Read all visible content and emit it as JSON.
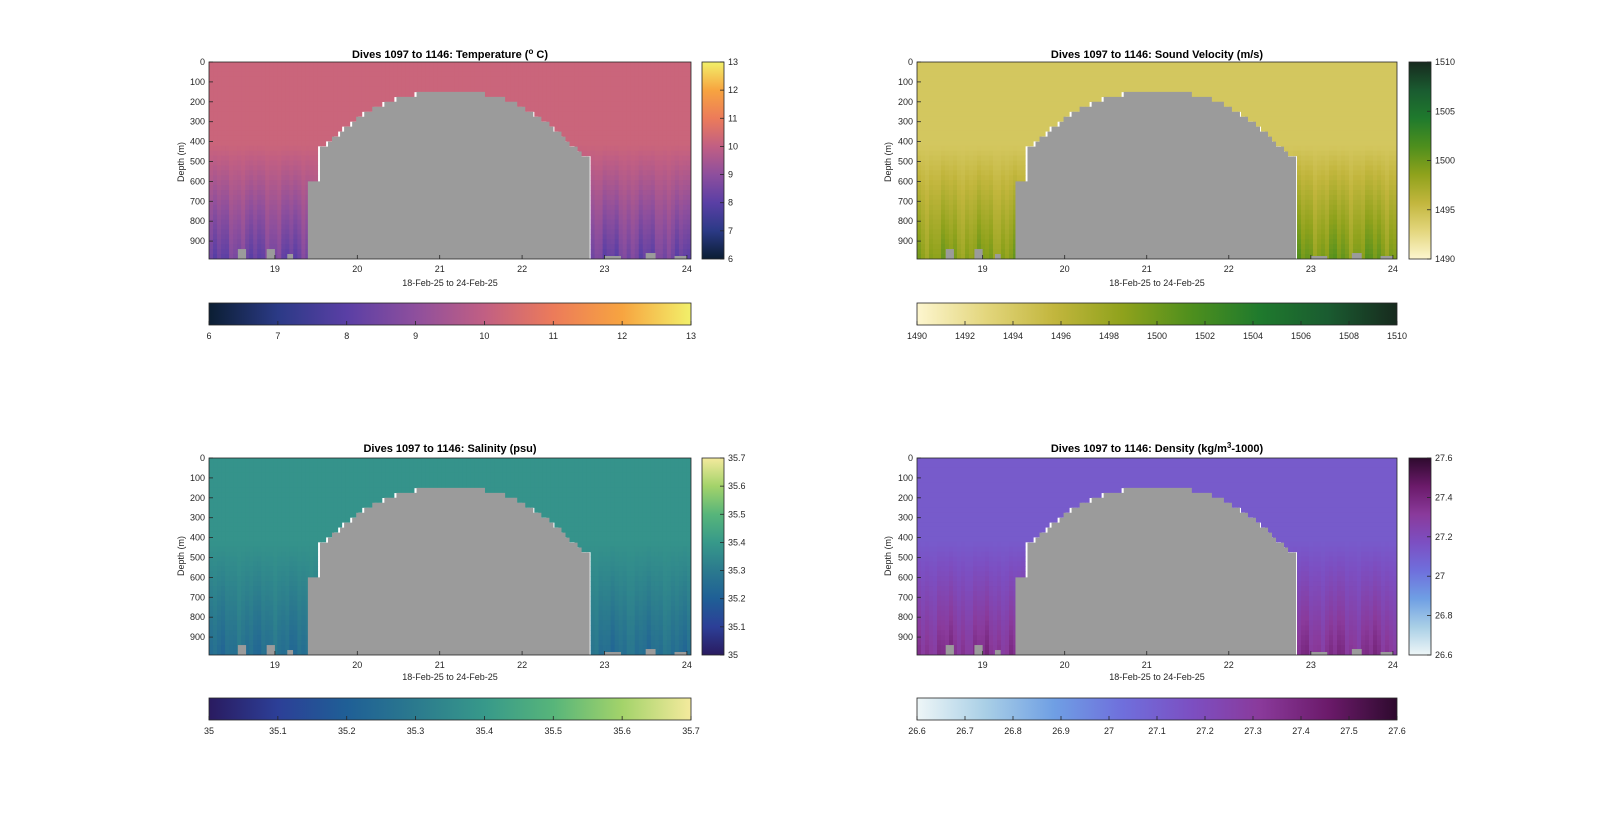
{
  "chart_data": [
    {
      "type": "heatmap",
      "title": "Dives 1097 to 1146: Temperature (",
      "title_sup": "o",
      "title_end": " C)",
      "xlabel": "18-Feb-25 to 24-Feb-25",
      "ylabel": "Depth (m)",
      "x_ticks": [
        "19",
        "20",
        "21",
        "22",
        "23",
        "24"
      ],
      "x_tick_values": [
        19,
        20,
        21,
        22,
        23,
        24
      ],
      "xlim": [
        18.2,
        24.05
      ],
      "y_ticks": [
        "0",
        "100",
        "200",
        "300",
        "400",
        "500",
        "600",
        "700",
        "800",
        "900"
      ],
      "y_tick_values": [
        0,
        100,
        200,
        300,
        400,
        500,
        600,
        700,
        800,
        900
      ],
      "ylim": [
        0,
        990
      ],
      "y_reversed": true,
      "colorbar_ticks": [
        "6",
        "7",
        "8",
        "9",
        "10",
        "11",
        "12",
        "13"
      ],
      "hcolorbar_ticks": [
        "6",
        "7",
        "8",
        "9",
        "10",
        "11",
        "12",
        "13"
      ],
      "crange": [
        6,
        13
      ],
      "colormap": [
        "#0b1e33",
        "#2b3a86",
        "#5a3fa5",
        "#8e4f9d",
        "#c15f83",
        "#ec7b5a",
        "#f7a440",
        "#f2f06a"
      ],
      "near_surface_value": 10.2,
      "deep_value_left": 7.8,
      "deep_value_right": 7.8,
      "no_data_color": "#9b9b9b",
      "grid": false
    },
    {
      "type": "heatmap",
      "title": "Dives 1097 to 1146: Sound Velocity (m/s)",
      "xlabel": "18-Feb-25 to 24-Feb-25",
      "ylabel": "Depth (m)",
      "x_ticks": [
        "19",
        "20",
        "21",
        "22",
        "23",
        "24"
      ],
      "x_tick_values": [
        19,
        20,
        21,
        22,
        23,
        24
      ],
      "xlim": [
        18.2,
        24.05
      ],
      "y_ticks": [
        "0",
        "100",
        "200",
        "300",
        "400",
        "500",
        "600",
        "700",
        "800",
        "900"
      ],
      "y_tick_values": [
        0,
        100,
        200,
        300,
        400,
        500,
        600,
        700,
        800,
        900
      ],
      "ylim": [
        0,
        990
      ],
      "y_reversed": true,
      "colorbar_ticks": [
        "1490",
        "1495",
        "1500",
        "1505",
        "1510"
      ],
      "hcolorbar_ticks": [
        "1490",
        "1492",
        "1494",
        "1496",
        "1498",
        "1500",
        "1502",
        "1504",
        "1506",
        "1508",
        "1510"
      ],
      "crange": [
        1490,
        1510
      ],
      "colormap": [
        "#fdf6cf",
        "#e3d67d",
        "#c2b63d",
        "#8fa21c",
        "#4e8f1d",
        "#1f7a2d",
        "#1a5b30",
        "#172a1e"
      ],
      "near_surface_value": 1494.2,
      "deep_value_left": 1500.5,
      "deep_value_right": 1501.5,
      "no_data_color": "#9b9b9b",
      "grid": false
    },
    {
      "type": "heatmap",
      "title": "Dives 1097 to 1146: Salinity (psu)",
      "xlabel": "18-Feb-25 to 24-Feb-25",
      "ylabel": "Depth (m)",
      "x_ticks": [
        "19",
        "20",
        "21",
        "22",
        "23",
        "24"
      ],
      "x_tick_values": [
        19,
        20,
        21,
        22,
        23,
        24
      ],
      "xlim": [
        18.2,
        24.05
      ],
      "y_ticks": [
        "0",
        "100",
        "200",
        "300",
        "400",
        "500",
        "600",
        "700",
        "800",
        "900"
      ],
      "y_tick_values": [
        0,
        100,
        200,
        300,
        400,
        500,
        600,
        700,
        800,
        900
      ],
      "ylim": [
        0,
        990
      ],
      "y_reversed": true,
      "colorbar_ticks": [
        "35",
        "35.1",
        "35.2",
        "35.3",
        "35.4",
        "35.5",
        "35.6",
        "35.7"
      ],
      "hcolorbar_ticks": [
        "35",
        "35.1",
        "35.2",
        "35.3",
        "35.4",
        "35.5",
        "35.6",
        "35.7"
      ],
      "crange": [
        35,
        35.7
      ],
      "colormap": [
        "#2a1b60",
        "#2c3f97",
        "#1f5f96",
        "#2b7a8e",
        "#37998a",
        "#57b57a",
        "#a3d36a",
        "#f4ea9d"
      ],
      "near_surface_value": 35.38,
      "deep_value_left": 35.22,
      "deep_value_right": 35.22,
      "no_data_color": "#9b9b9b",
      "grid": false
    },
    {
      "type": "heatmap",
      "title": "Dives 1097 to 1146: Density (kg/m",
      "title_sup": "3",
      "title_end": "-1000)",
      "xlabel": "18-Feb-25 to 24-Feb-25",
      "ylabel": "Depth (m)",
      "x_ticks": [
        "19",
        "20",
        "21",
        "22",
        "23",
        "24"
      ],
      "x_tick_values": [
        19,
        20,
        21,
        22,
        23,
        24
      ],
      "xlim": [
        18.2,
        24.05
      ],
      "y_ticks": [
        "0",
        "100",
        "200",
        "300",
        "400",
        "500",
        "600",
        "700",
        "800",
        "900"
      ],
      "y_tick_values": [
        0,
        100,
        200,
        300,
        400,
        500,
        600,
        700,
        800,
        900
      ],
      "ylim": [
        0,
        990
      ],
      "y_reversed": true,
      "colorbar_ticks": [
        "26.6",
        "26.8",
        "27",
        "27.2",
        "27.4",
        "27.6"
      ],
      "hcolorbar_ticks": [
        "26.6",
        "26.7",
        "26.8",
        "26.9",
        "27",
        "27.1",
        "27.2",
        "27.3",
        "27.4",
        "27.5",
        "27.6"
      ],
      "crange": [
        26.6,
        27.6
      ],
      "colormap": [
        "#eef6f7",
        "#a9cfe6",
        "#6f9fe4",
        "#6f6fdc",
        "#7c4fc2",
        "#8a3a9b",
        "#6b1a6a",
        "#2e0a2e"
      ],
      "near_surface_value": 27.12,
      "deep_value_left": 27.42,
      "deep_value_right": 27.42,
      "no_data_color": "#9b9b9b",
      "grid": false
    }
  ]
}
